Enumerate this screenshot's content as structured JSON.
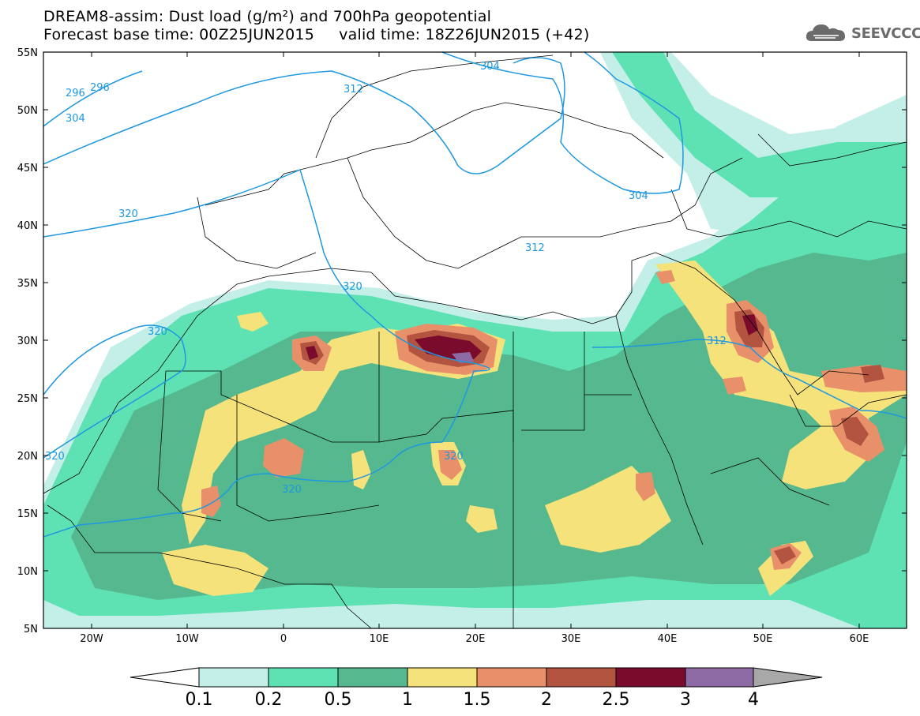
{
  "title": {
    "line1": "DREAM8-assim: Dust load (g/m²) and 700hPa geopotential",
    "line2": "Forecast base time: 00Z25JUN2015     valid time: 18Z26JUN2015 (+42)"
  },
  "logo": {
    "text": "SEEVCCC",
    "icon": "cloud-icon"
  },
  "map": {
    "lat_labels": [
      "55N",
      "50N",
      "45N",
      "40N",
      "35N",
      "30N",
      "25N",
      "20N",
      "15N",
      "10N",
      "5N"
    ],
    "lon_labels": [
      "20W",
      "10W",
      "0",
      "10E",
      "20E",
      "30E",
      "40E",
      "50E",
      "60E"
    ],
    "contour_labels": [
      "296",
      "296",
      "304",
      "304",
      "304",
      "312",
      "312",
      "320",
      "320",
      "320",
      "320",
      "320",
      "320",
      "312"
    ]
  },
  "colorbar": {
    "labels": [
      "0.1",
      "0.2",
      "0.5",
      "1",
      "1.5",
      "2",
      "2.5",
      "3",
      "4"
    ],
    "colors": [
      "#c4efe8",
      "#5ee2b4",
      "#55b88f",
      "#f5e27a",
      "#e8906a",
      "#b35440",
      "#7a0b2c",
      "#8e6aa4"
    ]
  }
}
